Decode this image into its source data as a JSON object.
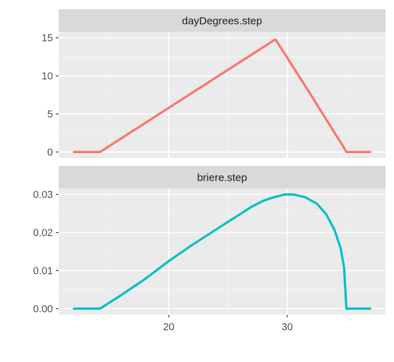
{
  "chart_data": {
    "type": "line",
    "layout": "faceted, vertical stack, shared x-axis",
    "x_axis": {
      "range": [
        10.7,
        38.3
      ],
      "ticks": [
        20,
        30
      ],
      "tick_labels": [
        "20",
        "30"
      ],
      "label": ""
    },
    "grid": true,
    "legend": "none",
    "panels": [
      {
        "strip_label": "dayDegrees.step",
        "color": "#F8766D",
        "y_range": [
          -0.8,
          15.8
        ],
        "y_ticks": [
          0,
          5,
          10,
          15
        ],
        "y_tick_labels": [
          "0",
          "5",
          "10",
          "15"
        ],
        "series": [
          {
            "x": [
              12,
              14.2,
              16,
              18,
              20,
              22,
              24,
              26,
              28,
              29,
              30,
              32,
              34,
              34.7,
              35,
              37
            ],
            "y": [
              0,
              0,
              1.8,
              3.8,
              5.8,
              7.8,
              9.8,
              11.8,
              13.8,
              14.8,
              12.4,
              7.5,
              2.5,
              0.8,
              0,
              0
            ]
          }
        ]
      },
      {
        "strip_label": "briere.step",
        "color": "#00BFC4",
        "y_range": [
          -0.0016,
          0.0316
        ],
        "y_ticks": [
          0,
          0.01,
          0.02,
          0.03
        ],
        "y_tick_labels": [
          "0.00",
          "0.01",
          "0.02",
          "0.03"
        ],
        "series": [
          {
            "x": [
              12,
              14.2,
              16,
              18,
              20,
              22,
              24,
              26,
              27,
              28,
              29,
              29.8,
              30.5,
              31.5,
              32.5,
              33.3,
              34,
              34.5,
              34.8,
              35,
              37
            ],
            "y": [
              0,
              0,
              0.0036,
              0.0078,
              0.0125,
              0.0168,
              0.0208,
              0.0248,
              0.0268,
              0.0284,
              0.0294,
              0.03,
              0.03,
              0.0293,
              0.0276,
              0.0248,
              0.0206,
              0.016,
              0.0108,
              0,
              0
            ]
          }
        ]
      }
    ]
  }
}
